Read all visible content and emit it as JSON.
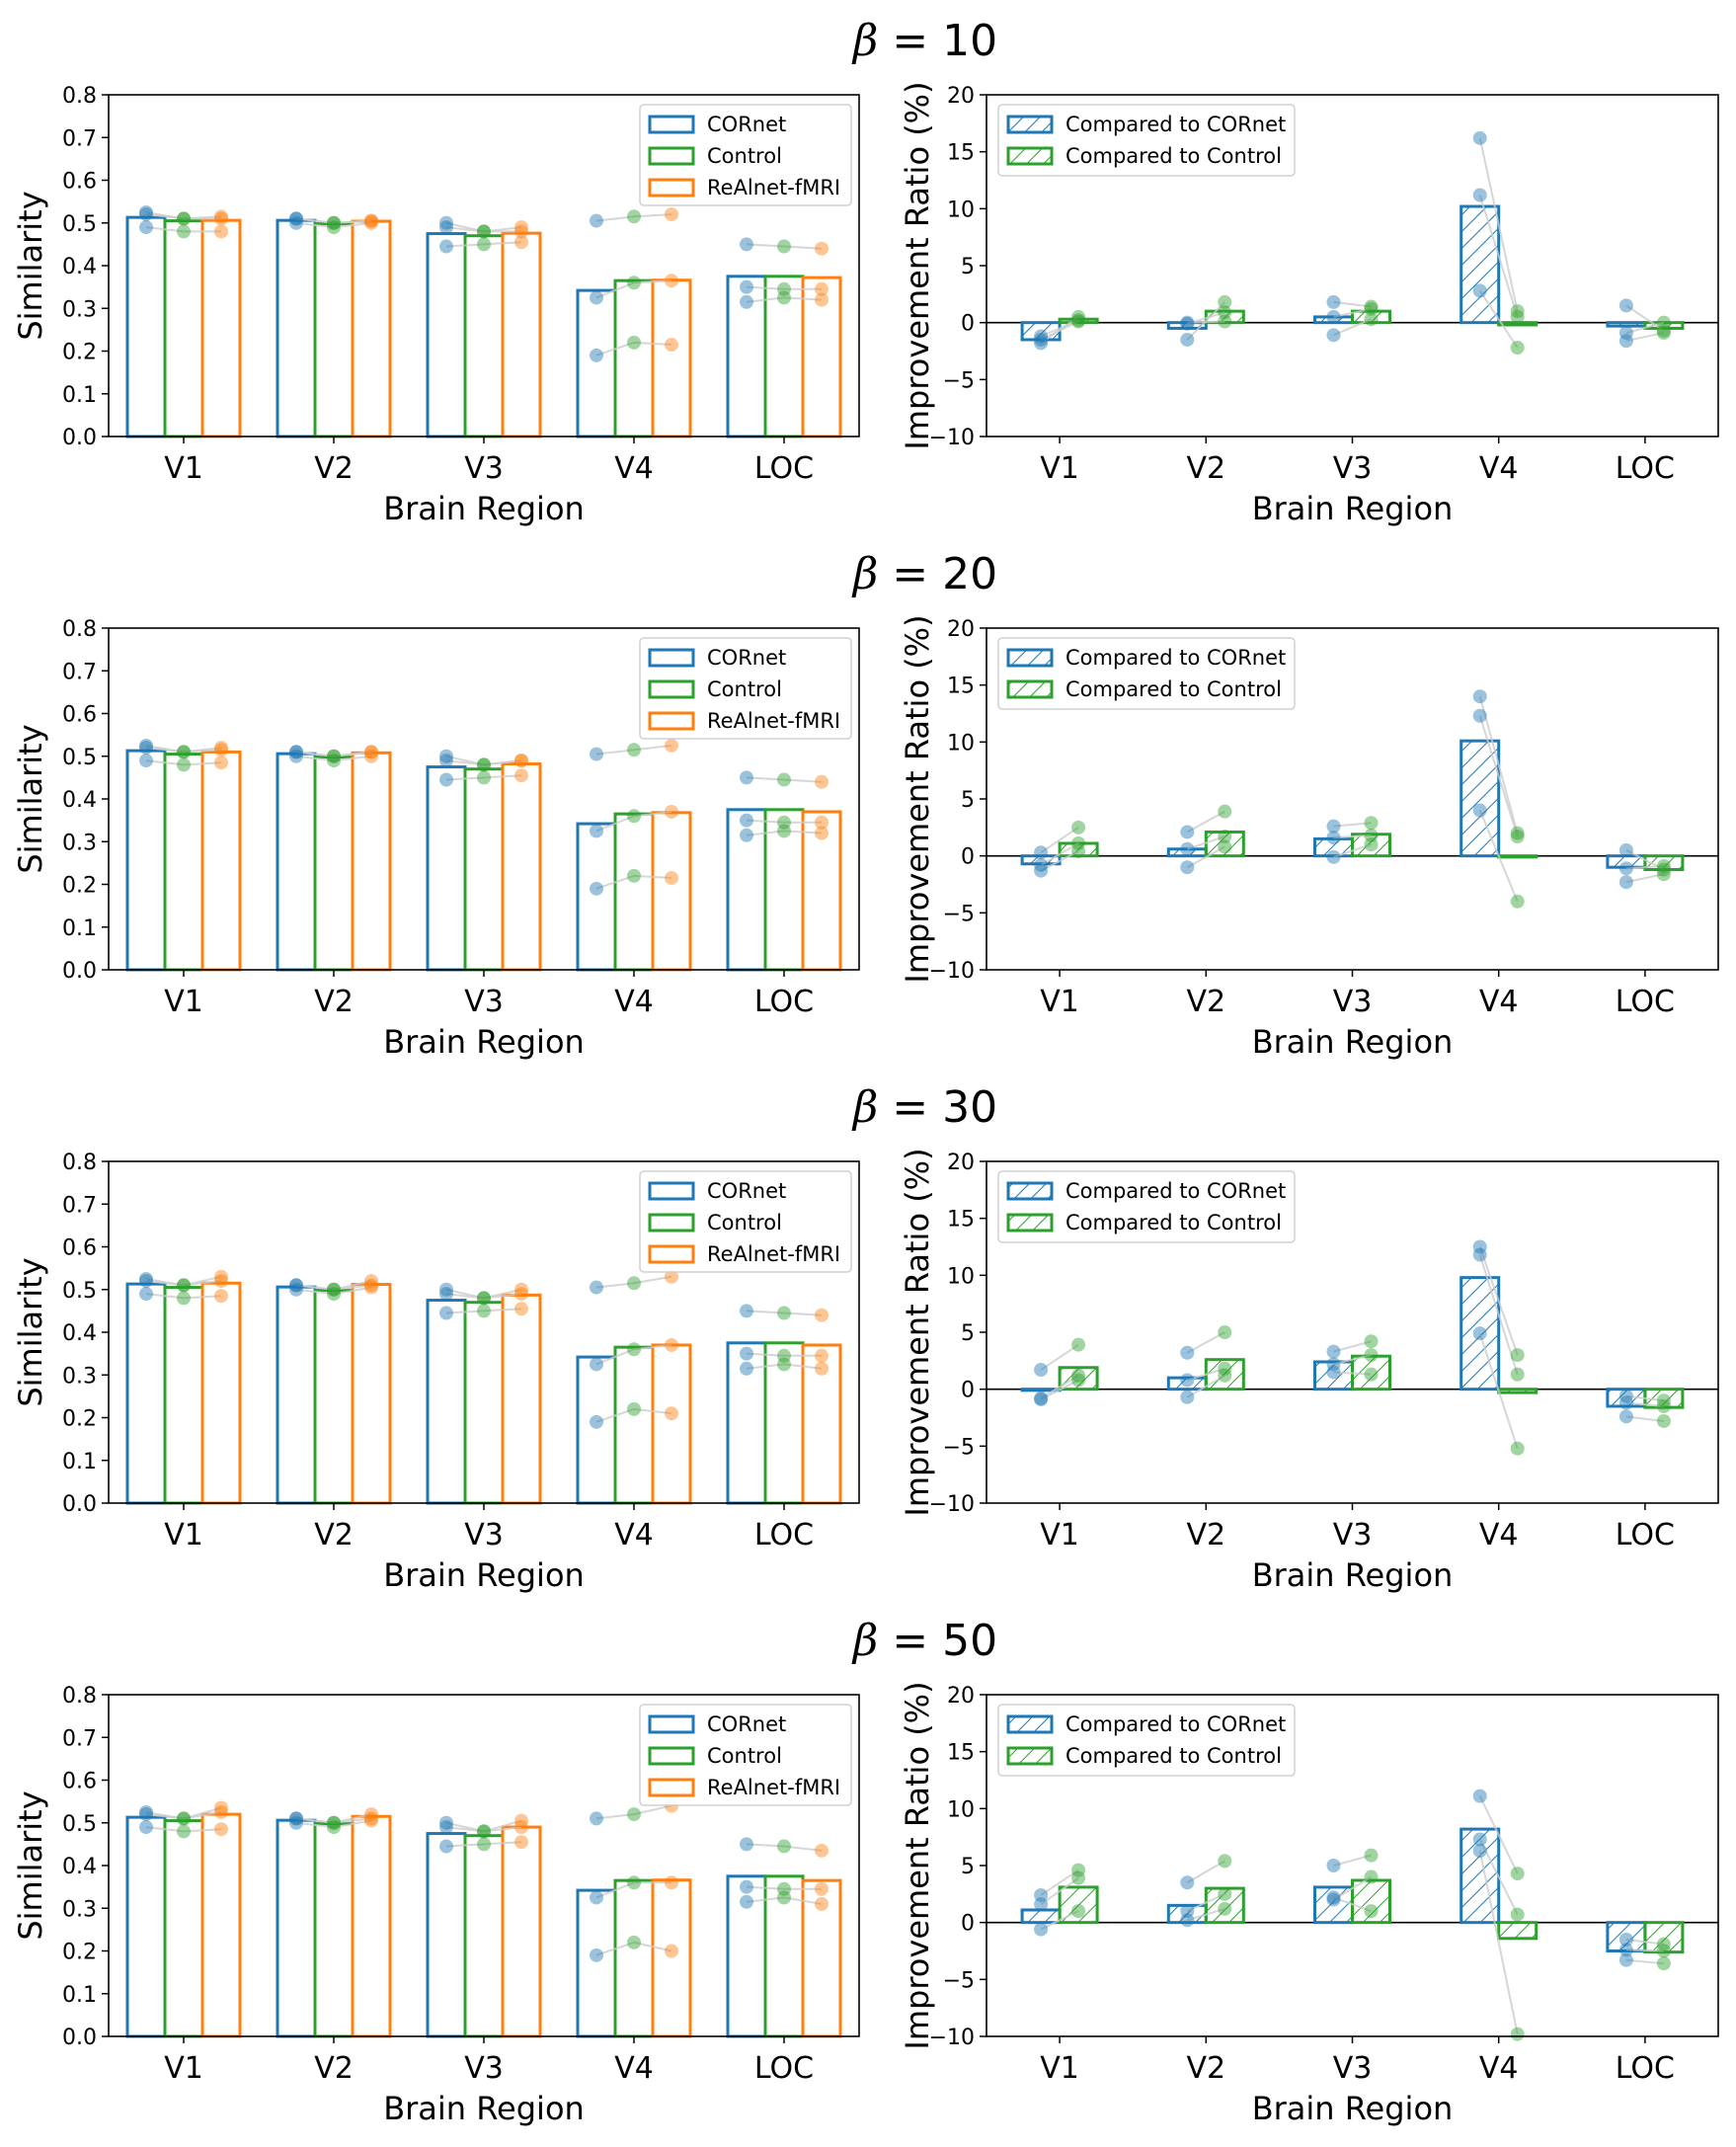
{
  "colors": {
    "cornet": "#1f77b4",
    "control": "#2ca02c",
    "realnet": "#ff7f0e",
    "axis": "#000000",
    "connector": "#cccccc"
  },
  "chart_data": [
    {
      "type": "bar",
      "title": "β = 10",
      "title_symbol": "β",
      "title_rest": " = 10",
      "similarity": {
        "xlabel": "Brain Region",
        "ylabel": "Similarity",
        "ylim": [
          0,
          0.8
        ],
        "yticks": [
          "0.0",
          "0.1",
          "0.2",
          "0.3",
          "0.4",
          "0.5",
          "0.6",
          "0.7",
          "0.8"
        ],
        "categories": [
          "V1",
          "V2",
          "V3",
          "V4",
          "LOC"
        ],
        "legend": [
          "CORnet",
          "Control",
          "ReAlnet-fMRI"
        ],
        "series": [
          {
            "name": "CORnet",
            "values": [
              0.513,
              0.506,
              0.475,
              0.342,
              0.375
            ],
            "points": [
              [
                0.52,
                0.49,
                0.525
              ],
              [
                0.51,
                0.5,
                0.51
              ],
              [
                0.49,
                0.445,
                0.5
              ],
              [
                0.505,
                0.19,
                0.325
              ],
              [
                0.45,
                0.315,
                0.35
              ]
            ]
          },
          {
            "name": "Control",
            "values": [
              0.505,
              0.498,
              0.47,
              0.365,
              0.375
            ],
            "points": [
              [
                0.51,
                0.48,
                0.51
              ],
              [
                0.5,
                0.49,
                0.5
              ],
              [
                0.48,
                0.45,
                0.48
              ],
              [
                0.515,
                0.22,
                0.36
              ],
              [
                0.445,
                0.325,
                0.345
              ]
            ]
          },
          {
            "name": "ReAlnet-fMRI",
            "values": [
              0.506,
              0.504,
              0.476,
              0.366,
              0.372
            ],
            "points": [
              [
                0.515,
                0.48,
                0.51
              ],
              [
                0.505,
                0.5,
                0.505
              ],
              [
                0.49,
                0.455,
                0.48
              ],
              [
                0.52,
                0.215,
                0.365
              ],
              [
                0.44,
                0.32,
                0.345
              ]
            ]
          }
        ]
      },
      "improvement": {
        "xlabel": "Brain Region",
        "ylabel": "Improvement Ratio (%)",
        "ylim": [
          -10,
          20
        ],
        "yticks": [
          "−10",
          "−5",
          "0",
          "5",
          "10",
          "15",
          "20"
        ],
        "categories": [
          "V1",
          "V2",
          "V3",
          "V4",
          "LOC"
        ],
        "legend": [
          "Compared to CORnet",
          "Compared to Control"
        ],
        "series": [
          {
            "name": "Compared to CORnet",
            "values": [
              -1.5,
              -0.5,
              0.5,
              10.2,
              -0.3
            ],
            "points": [
              [
                -1.8,
                -1.5,
                -1.2
              ],
              [
                -1.5,
                0,
                -0.1
              ],
              [
                1.8,
                -1.1,
                0.5
              ],
              [
                16.2,
                2.8,
                11.2
              ],
              [
                1.5,
                -1.6,
                -0.9
              ]
            ]
          },
          {
            "name": "Compared to Control",
            "values": [
              0.3,
              1.0,
              1.0,
              -0.2,
              -0.5
            ],
            "points": [
              [
                0.5,
                0.1,
                0.2
              ],
              [
                1.8,
                0.1,
                0.9
              ],
              [
                1.4,
                0.3,
                1.2
              ],
              [
                1.0,
                -2.2,
                0.5
              ],
              [
                -0.7,
                -0.9,
                0.0
              ]
            ]
          }
        ]
      }
    },
    {
      "type": "bar",
      "title": "β = 20",
      "title_symbol": "β",
      "title_rest": " = 20",
      "similarity": {
        "xlabel": "Brain Region",
        "ylabel": "Similarity",
        "ylim": [
          0,
          0.8
        ],
        "yticks": [
          "0.0",
          "0.1",
          "0.2",
          "0.3",
          "0.4",
          "0.5",
          "0.6",
          "0.7",
          "0.8"
        ],
        "categories": [
          "V1",
          "V2",
          "V3",
          "V4",
          "LOC"
        ],
        "legend": [
          "CORnet",
          "Control",
          "ReAlnet-fMRI"
        ],
        "series": [
          {
            "name": "CORnet",
            "values": [
              0.513,
              0.506,
              0.475,
              0.342,
              0.375
            ],
            "points": [
              [
                0.52,
                0.49,
                0.525
              ],
              [
                0.51,
                0.5,
                0.51
              ],
              [
                0.49,
                0.445,
                0.5
              ],
              [
                0.505,
                0.19,
                0.325
              ],
              [
                0.45,
                0.315,
                0.35
              ]
            ]
          },
          {
            "name": "Control",
            "values": [
              0.505,
              0.498,
              0.47,
              0.365,
              0.375
            ],
            "points": [
              [
                0.51,
                0.48,
                0.51
              ],
              [
                0.5,
                0.49,
                0.5
              ],
              [
                0.48,
                0.45,
                0.48
              ],
              [
                0.515,
                0.22,
                0.36
              ],
              [
                0.445,
                0.325,
                0.345
              ]
            ]
          },
          {
            "name": "ReAlnet-fMRI",
            "values": [
              0.51,
              0.508,
              0.482,
              0.368,
              0.37
            ],
            "points": [
              [
                0.52,
                0.485,
                0.515
              ],
              [
                0.51,
                0.5,
                0.51
              ],
              [
                0.49,
                0.455,
                0.49
              ],
              [
                0.525,
                0.215,
                0.37
              ],
              [
                0.44,
                0.32,
                0.345
              ]
            ]
          }
        ]
      },
      "improvement": {
        "xlabel": "Brain Region",
        "ylabel": "Improvement Ratio (%)",
        "ylim": [
          -10,
          20
        ],
        "yticks": [
          "−10",
          "−5",
          "0",
          "5",
          "10",
          "15",
          "20"
        ],
        "categories": [
          "V1",
          "V2",
          "V3",
          "V4",
          "LOC"
        ],
        "legend": [
          "Compared to CORnet",
          "Compared to Control"
        ],
        "series": [
          {
            "name": "Compared to CORnet",
            "values": [
              -0.7,
              0.6,
              1.5,
              10.1,
              -1.0
            ],
            "points": [
              [
                0.3,
                -1.3,
                -0.8
              ],
              [
                2.1,
                -1.0,
                0.6
              ],
              [
                2.6,
                -0.1,
                1.6
              ],
              [
                14.0,
                4.0,
                12.3
              ],
              [
                0.5,
                -2.3,
                -1.1
              ]
            ]
          },
          {
            "name": "Compared to Control",
            "values": [
              1.1,
              2.1,
              1.9,
              -0.1,
              -1.2
            ],
            "points": [
              [
                2.5,
                0.4,
                1.1
              ],
              [
                3.9,
                0.8,
                1.7
              ],
              [
                2.9,
                1.0,
                1.8
              ],
              [
                2.0,
                -4.0,
                1.7
              ],
              [
                -1.2,
                -1.6,
                -0.9
              ]
            ]
          }
        ]
      }
    },
    {
      "type": "bar",
      "title": "β = 30",
      "title_symbol": "β",
      "title_rest": " = 30",
      "similarity": {
        "xlabel": "Brain Region",
        "ylabel": "Similarity",
        "ylim": [
          0,
          0.8
        ],
        "yticks": [
          "0.0",
          "0.1",
          "0.2",
          "0.3",
          "0.4",
          "0.5",
          "0.6",
          "0.7",
          "0.8"
        ],
        "categories": [
          "V1",
          "V2",
          "V3",
          "V4",
          "LOC"
        ],
        "legend": [
          "CORnet",
          "Control",
          "ReAlnet-fMRI"
        ],
        "series": [
          {
            "name": "CORnet",
            "values": [
              0.513,
              0.506,
              0.475,
              0.342,
              0.375
            ],
            "points": [
              [
                0.52,
                0.49,
                0.525
              ],
              [
                0.51,
                0.5,
                0.51
              ],
              [
                0.49,
                0.445,
                0.5
              ],
              [
                0.505,
                0.19,
                0.325
              ],
              [
                0.45,
                0.315,
                0.35
              ]
            ]
          },
          {
            "name": "Control",
            "values": [
              0.505,
              0.498,
              0.47,
              0.365,
              0.375
            ],
            "points": [
              [
                0.51,
                0.48,
                0.51
              ],
              [
                0.5,
                0.49,
                0.5
              ],
              [
                0.48,
                0.45,
                0.48
              ],
              [
                0.515,
                0.22,
                0.36
              ],
              [
                0.445,
                0.325,
                0.345
              ]
            ]
          },
          {
            "name": "ReAlnet-fMRI",
            "values": [
              0.515,
              0.512,
              0.487,
              0.37,
              0.37
            ],
            "points": [
              [
                0.53,
                0.485,
                0.52
              ],
              [
                0.52,
                0.505,
                0.51
              ],
              [
                0.5,
                0.455,
                0.49
              ],
              [
                0.53,
                0.21,
                0.37
              ],
              [
                0.44,
                0.315,
                0.345
              ]
            ]
          }
        ]
      },
      "improvement": {
        "xlabel": "Brain Region",
        "ylabel": "Improvement Ratio (%)",
        "ylim": [
          -10,
          20
        ],
        "yticks": [
          "−10",
          "−5",
          "0",
          "5",
          "10",
          "15",
          "20"
        ],
        "categories": [
          "V1",
          "V2",
          "V3",
          "V4",
          "LOC"
        ],
        "legend": [
          "Compared to CORnet",
          "Compared to Control"
        ],
        "series": [
          {
            "name": "Compared to CORnet",
            "values": [
              -0.1,
              1.0,
              2.4,
              9.8,
              -1.5
            ],
            "points": [
              [
                1.7,
                -0.9,
                -0.8
              ],
              [
                3.2,
                -0.7,
                0.8
              ],
              [
                3.3,
                1.5,
                2.2
              ],
              [
                12.5,
                4.9,
                11.8
              ],
              [
                -0.6,
                -2.4,
                -1.2
              ]
            ]
          },
          {
            "name": "Compared to Control",
            "values": [
              1.9,
              2.6,
              2.9,
              -0.3,
              -1.6
            ],
            "points": [
              [
                3.9,
                0.8,
                1.2
              ],
              [
                5.0,
                1.2,
                1.8
              ],
              [
                4.2,
                1.3,
                3.0
              ],
              [
                3.0,
                -5.2,
                1.3
              ],
              [
                -1.0,
                -2.8,
                -1.5
              ]
            ]
          }
        ]
      }
    },
    {
      "type": "bar",
      "title": "β = 50",
      "title_symbol": "β",
      "title_rest": " = 50",
      "similarity": {
        "xlabel": "Brain Region",
        "ylabel": "Similarity",
        "ylim": [
          0,
          0.8
        ],
        "yticks": [
          "0.0",
          "0.1",
          "0.2",
          "0.3",
          "0.4",
          "0.5",
          "0.6",
          "0.7",
          "0.8"
        ],
        "categories": [
          "V1",
          "V2",
          "V3",
          "V4",
          "LOC"
        ],
        "legend": [
          "CORnet",
          "Control",
          "ReAlnet-fMRI"
        ],
        "series": [
          {
            "name": "CORnet",
            "values": [
              0.513,
              0.506,
              0.475,
              0.342,
              0.375
            ],
            "points": [
              [
                0.52,
                0.49,
                0.525
              ],
              [
                0.51,
                0.5,
                0.51
              ],
              [
                0.49,
                0.445,
                0.5
              ],
              [
                0.51,
                0.19,
                0.325
              ],
              [
                0.45,
                0.315,
                0.35
              ]
            ]
          },
          {
            "name": "Control",
            "values": [
              0.505,
              0.498,
              0.47,
              0.365,
              0.375
            ],
            "points": [
              [
                0.51,
                0.48,
                0.51
              ],
              [
                0.5,
                0.49,
                0.5
              ],
              [
                0.48,
                0.45,
                0.48
              ],
              [
                0.52,
                0.22,
                0.36
              ],
              [
                0.445,
                0.325,
                0.345
              ]
            ]
          },
          {
            "name": "ReAlnet-fMRI",
            "values": [
              0.52,
              0.515,
              0.49,
              0.366,
              0.365
            ],
            "points": [
              [
                0.535,
                0.485,
                0.525
              ],
              [
                0.52,
                0.505,
                0.51
              ],
              [
                0.505,
                0.455,
                0.49
              ],
              [
                0.54,
                0.2,
                0.36
              ],
              [
                0.435,
                0.31,
                0.345
              ]
            ]
          }
        ]
      },
      "improvement": {
        "xlabel": "Brain Region",
        "ylabel": "Improvement Ratio (%)",
        "ylim": [
          -10,
          20
        ],
        "yticks": [
          "−10",
          "−5",
          "0",
          "5",
          "10",
          "15",
          "20"
        ],
        "categories": [
          "V1",
          "V2",
          "V3",
          "V4",
          "LOC"
        ],
        "legend": [
          "Compared to CORnet",
          "Compared to Control"
        ],
        "series": [
          {
            "name": "Compared to CORnet",
            "values": [
              1.1,
              1.5,
              3.1,
              8.2,
              -2.5
            ],
            "points": [
              [
                2.4,
                -0.6,
                1.6
              ],
              [
                3.5,
                0.2,
                1.0
              ],
              [
                5.0,
                2.2,
                2.0
              ],
              [
                11.1,
                6.3,
                7.3
              ],
              [
                -1.5,
                -3.3,
                -2.4
              ]
            ]
          },
          {
            "name": "Compared to Control",
            "values": [
              3.1,
              3.0,
              3.7,
              -1.4,
              -2.6
            ],
            "points": [
              [
                4.6,
                1.0,
                3.9
              ],
              [
                5.4,
                1.2,
                2.5
              ],
              [
                5.9,
                1.0,
                4.0
              ],
              [
                4.3,
                -9.8,
                0.7
              ],
              [
                -1.9,
                -3.6,
                -2.5
              ]
            ]
          }
        ]
      }
    }
  ]
}
